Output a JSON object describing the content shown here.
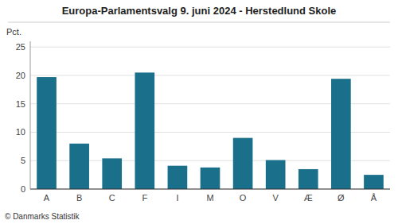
{
  "chart_data": {
    "type": "bar",
    "title": "Europa-Parlamentsvalg 9. juni 2024 - Herstedlund Skole",
    "ylabel": "Pct.",
    "footnote": "© Danmarks Statistik",
    "categories": [
      "A",
      "B",
      "C",
      "F",
      "I",
      "M",
      "O",
      "V",
      "Æ",
      "Ø",
      "Å"
    ],
    "values": [
      19.7,
      8.0,
      5.4,
      20.5,
      4.1,
      3.8,
      9.0,
      5.1,
      3.5,
      19.4,
      2.5
    ],
    "color": "#1a6f8a",
    "ylim": [
      0,
      26
    ],
    "yticks": [
      0,
      5,
      10,
      15,
      20,
      25
    ],
    "grid": true
  }
}
